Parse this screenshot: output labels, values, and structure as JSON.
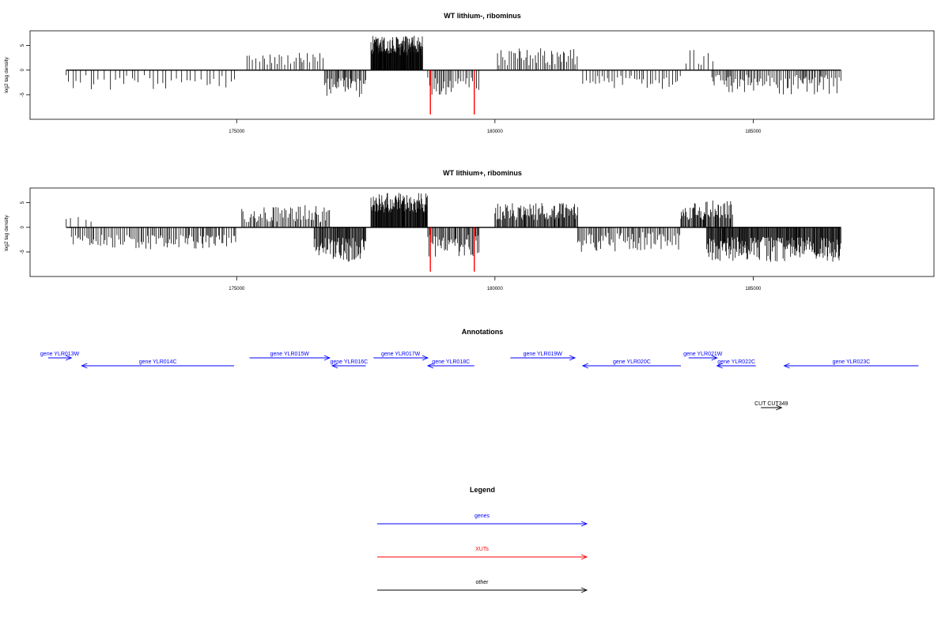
{
  "chart_data": [
    {
      "type": "bar",
      "title": "WT lithium-, ribominus",
      "xlabel": "",
      "ylabel": "log2 tag density",
      "xlim": [
        171000,
        188500
      ],
      "ylim": [
        -9.5,
        7.5
      ],
      "x_ticks": [
        175000,
        180000,
        185000
      ],
      "y_ticks": [
        -5,
        0,
        5
      ],
      "baseline_range": [
        171700,
        186700
      ],
      "segments": [
        {
          "range": [
            171700,
            175000
          ],
          "sign": -1,
          "min": 1,
          "max": 4,
          "density": 0.012
        },
        {
          "range": [
            175200,
            176700
          ],
          "sign": 1,
          "min": 1,
          "max": 3.5,
          "density": 0.02
        },
        {
          "range": [
            176700,
            177500
          ],
          "sign": -1,
          "min": 1.5,
          "max": 5.5,
          "density": 0.04
        },
        {
          "range": [
            177600,
            178600
          ],
          "sign": 1,
          "min": 3,
          "max": 7,
          "density": 0.12
        },
        {
          "range": [
            178700,
            179700
          ],
          "sign": -1,
          "min": 1.5,
          "max": 5,
          "density": 0.03
        },
        {
          "range": [
            180050,
            181600
          ],
          "sign": 1,
          "min": 1,
          "max": 4.5,
          "density": 0.03
        },
        {
          "range": [
            181700,
            183600
          ],
          "sign": -1,
          "min": 1,
          "max": 4,
          "density": 0.02
        },
        {
          "range": [
            183700,
            184300
          ],
          "sign": 1,
          "min": 1,
          "max": 4.5,
          "density": 0.015
        },
        {
          "range": [
            184200,
            186700
          ],
          "sign": -1,
          "min": 1,
          "max": 5,
          "density": 0.035
        }
      ],
      "highlights": [
        {
          "x": 178750,
          "y": -9,
          "color": "#ff0000"
        },
        {
          "x": 179600,
          "y": -9,
          "color": "#ff0000"
        }
      ]
    },
    {
      "type": "bar",
      "title": "WT lithium+, ribominus",
      "xlabel": "",
      "ylabel": "log2 tag density",
      "xlim": [
        171000,
        188500
      ],
      "ylim": [
        -9.5,
        7.5
      ],
      "x_ticks": [
        175000,
        180000,
        185000
      ],
      "y_ticks": [
        -5,
        0,
        5
      ],
      "baseline_range": [
        171700,
        186700
      ],
      "segments": [
        {
          "range": [
            171700,
            172300
          ],
          "sign": 1,
          "min": 1,
          "max": 2.5,
          "density": 0.008
        },
        {
          "range": [
            171800,
            175000
          ],
          "sign": -1,
          "min": 1.5,
          "max": 4.5,
          "density": 0.03
        },
        {
          "range": [
            175100,
            176800
          ],
          "sign": 1,
          "min": 1,
          "max": 4.5,
          "density": 0.035
        },
        {
          "range": [
            176500,
            177500
          ],
          "sign": -1,
          "min": 2,
          "max": 7,
          "density": 0.07
        },
        {
          "range": [
            177600,
            178700
          ],
          "sign": 1,
          "min": 3,
          "max": 7,
          "density": 0.1
        },
        {
          "range": [
            178700,
            179700
          ],
          "sign": -1,
          "min": 1.5,
          "max": 6,
          "density": 0.05
        },
        {
          "range": [
            180000,
            181600
          ],
          "sign": 1,
          "min": 1.5,
          "max": 5,
          "density": 0.06
        },
        {
          "range": [
            181600,
            183600
          ],
          "sign": -1,
          "min": 1,
          "max": 5,
          "density": 0.035
        },
        {
          "range": [
            183600,
            184600
          ],
          "sign": 1,
          "min": 1.5,
          "max": 5.5,
          "density": 0.06
        },
        {
          "range": [
            184100,
            186700
          ],
          "sign": -1,
          "min": 2,
          "max": 7,
          "density": 0.08
        }
      ],
      "highlights": [
        {
          "x": 178750,
          "y": -9,
          "color": "#ff0000"
        },
        {
          "x": 179600,
          "y": -9,
          "color": "#ff0000"
        }
      ]
    },
    {
      "type": "annotation",
      "title": "Annotations",
      "xlim": [
        171000,
        188500
      ],
      "features": [
        {
          "label": "gene YLR013W",
          "start": 171350,
          "end": 171800,
          "strand": "+",
          "row": 0,
          "color": "#0000ff"
        },
        {
          "label": "gene YLR014C",
          "start": 172000,
          "end": 174950,
          "strand": "-",
          "row": 1,
          "color": "#0000ff"
        },
        {
          "label": "gene YLR015W",
          "start": 175250,
          "end": 176800,
          "strand": "+",
          "row": 0,
          "color": "#0000ff"
        },
        {
          "label": "gene YLR016C",
          "start": 176850,
          "end": 177500,
          "strand": "-",
          "row": 1,
          "color": "#0000ff"
        },
        {
          "label": "gene YLR017W",
          "start": 177650,
          "end": 178700,
          "strand": "+",
          "row": 0,
          "color": "#0000ff"
        },
        {
          "label": "gene YLR018C",
          "start": 178700,
          "end": 179600,
          "strand": "-",
          "row": 1,
          "color": "#0000ff"
        },
        {
          "label": "gene YLR019W",
          "start": 180300,
          "end": 181550,
          "strand": "+",
          "row": 0,
          "color": "#0000ff"
        },
        {
          "label": "gene YLR020C",
          "start": 181700,
          "end": 183600,
          "strand": "-",
          "row": 1,
          "color": "#0000ff"
        },
        {
          "label": "gene YLR021W",
          "start": 183750,
          "end": 184300,
          "strand": "+",
          "row": 0,
          "color": "#0000ff"
        },
        {
          "label": "gene YLR022C",
          "start": 184300,
          "end": 185050,
          "strand": "-",
          "row": 1,
          "color": "#0000ff"
        },
        {
          "label": "gene YLR023C",
          "start": 185600,
          "end": 188200,
          "strand": "-",
          "row": 1,
          "color": "#0000ff"
        },
        {
          "label": "CUT CUT349",
          "start": 185150,
          "end": 185550,
          "strand": "+",
          "row": 3,
          "color": "#000000"
        }
      ]
    },
    {
      "type": "legend",
      "title": "Legend",
      "entries": [
        {
          "label": "genes",
          "color": "#0000ff"
        },
        {
          "label": "XUTs",
          "color": "#ff0000"
        },
        {
          "label": "other",
          "color": "#000000"
        }
      ]
    }
  ]
}
